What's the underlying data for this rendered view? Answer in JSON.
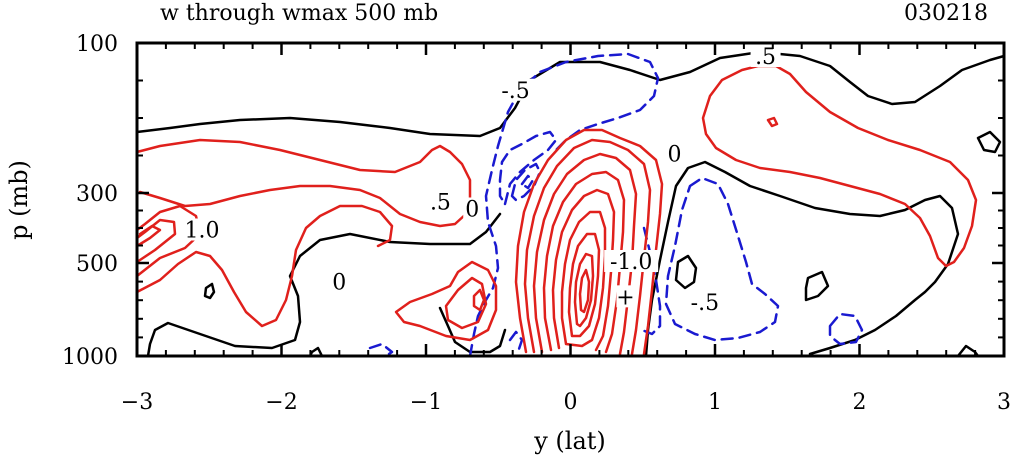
{
  "chart_data": {
    "type": "contour",
    "title": "w through wmax 500 mb",
    "date_label": "030218",
    "xlabel": "y (lat)",
    "ylabel": "p (mb)",
    "xlim": [
      -3,
      3
    ],
    "ylim": [
      1000,
      100
    ],
    "x_ticks": [
      -3,
      -2,
      -1,
      0,
      1,
      2,
      3
    ],
    "x_tick_labels": [
      "−3",
      "−2",
      "−1",
      "0",
      "1",
      "2",
      "3"
    ],
    "y_ticks": [
      100,
      300,
      500,
      1000
    ],
    "y_tick_labels": [
      "100",
      "300",
      "500",
      "1000"
    ],
    "y_scale": "nonlinear (pressure)",
    "grid": false,
    "series": [
      {
        "name": "positive w",
        "color": "#e0201c",
        "line_style": "solid"
      },
      {
        "name": "zero",
        "color": "#000000",
        "line_style": "solid"
      },
      {
        "name": "negative w",
        "color": "#1a1ad0",
        "line_style": "dashed"
      }
    ],
    "contour_labels": [
      {
        "text": ".5",
        "x": 1.35,
        "p": 120
      },
      {
        "text": "-.5",
        "x": -0.38,
        "p": 165
      },
      {
        "text": "1.0",
        "x": -2.55,
        "p": 410
      },
      {
        "text": ".5",
        "x": -0.9,
        "p": 330
      },
      {
        "text": "0",
        "x": -0.68,
        "p": 350
      },
      {
        "text": "0",
        "x": -1.6,
        "p": 610
      },
      {
        "text": "0",
        "x": 0.72,
        "p": 250
      },
      {
        "text": "-1.0",
        "x": 0.42,
        "p": 500
      },
      {
        "text": "+",
        "x": 0.38,
        "p": 690
      },
      {
        "text": "-.5",
        "x": 0.93,
        "p": 720
      }
    ]
  }
}
